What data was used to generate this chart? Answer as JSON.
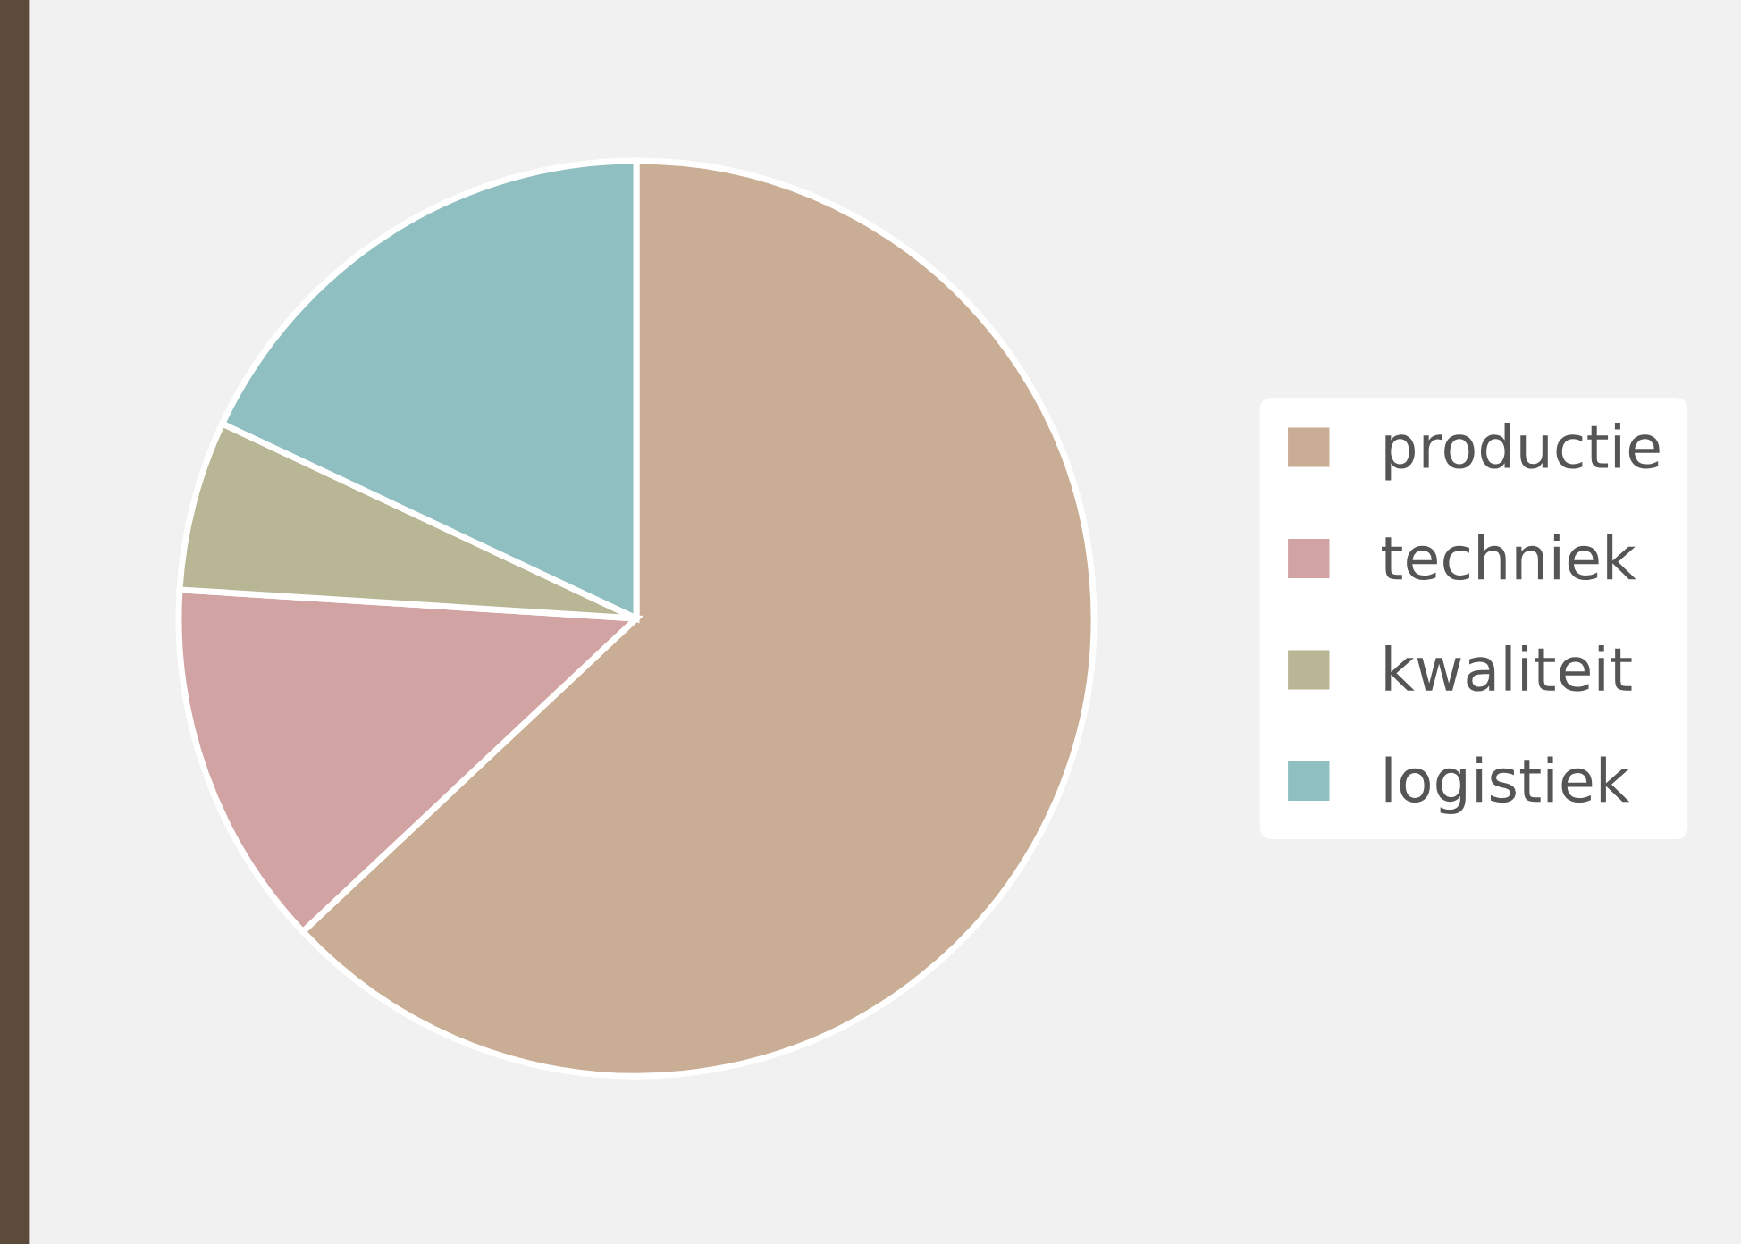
{
  "chart_data": {
    "type": "pie",
    "categories": [
      "productie",
      "techniek",
      "kwaliteit",
      "logistiek"
    ],
    "values": [
      63,
      13,
      6,
      18
    ],
    "colors": [
      "#c9ad94",
      "#d1a3a3",
      "#b8b695",
      "#8fbfc1"
    ],
    "legend": "right"
  }
}
